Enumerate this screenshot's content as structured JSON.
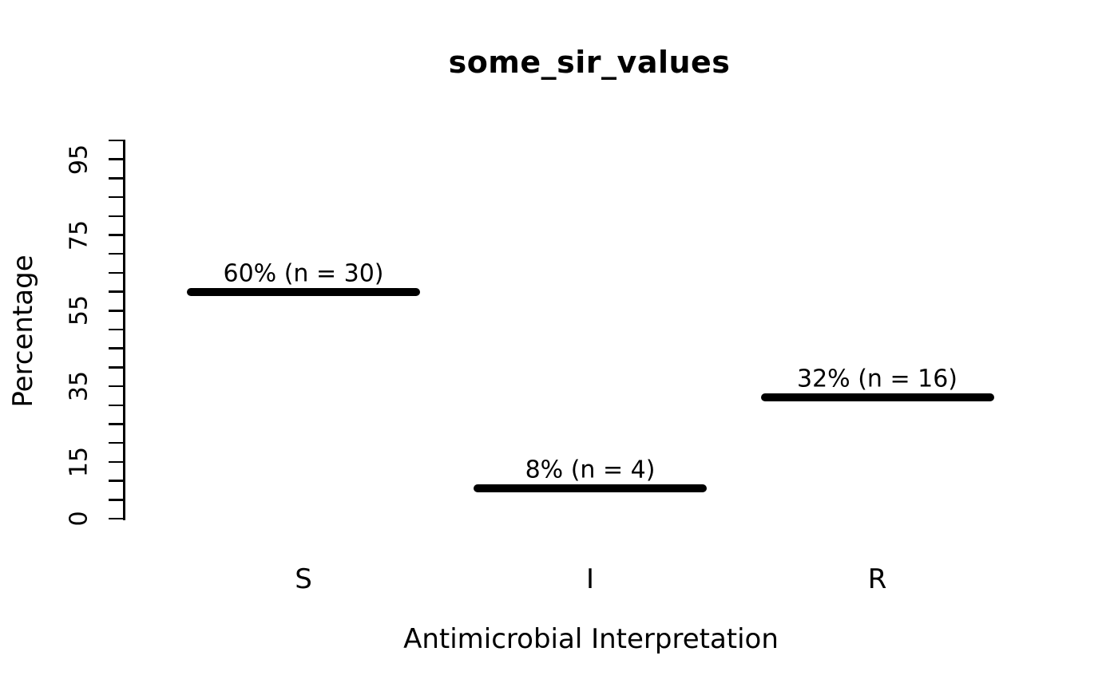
{
  "chart_data": {
    "type": "bar",
    "title": "some_sir_values",
    "xlabel": "Antimicrobial Interpretation",
    "ylabel": "Percentage",
    "categories": [
      "S",
      "I",
      "R"
    ],
    "values": [
      60,
      8,
      32
    ],
    "counts": [
      30,
      4,
      16
    ],
    "bar_labels": [
      "60% (n = 30)",
      "8% (n = 4)",
      "32% (n = 16)"
    ],
    "ylim": [
      0,
      100
    ],
    "y_tick_interval": 5,
    "y_tick_labels": [
      "0",
      "15",
      "35",
      "55",
      "75",
      "95"
    ],
    "y_tick_label_values": [
      0,
      15,
      35,
      55,
      75,
      95
    ],
    "grid": false,
    "legend": null,
    "bar_color": "#000000",
    "text_color": "#000000",
    "background_color": "#ffffff"
  }
}
